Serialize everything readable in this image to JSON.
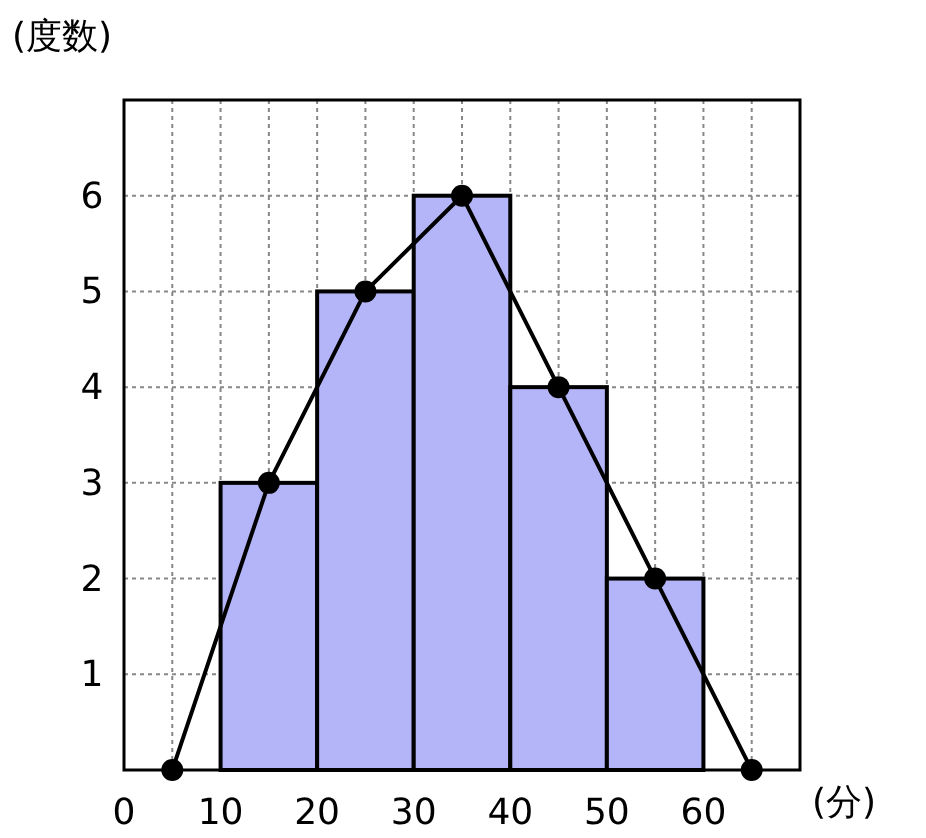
{
  "chart_data": {
    "type": "histogram",
    "bins": [
      10,
      20,
      30,
      40,
      50,
      60
    ],
    "values": [
      3,
      5,
      6,
      4,
      2
    ],
    "color": "#b4b4f8",
    "xlabel": "(分)",
    "ylabel": "(度数)",
    "xlim": [
      0,
      70
    ],
    "ylim": [
      0,
      7
    ],
    "xticks": [
      0,
      {
        "value": 5,
        "label": null
      },
      10,
      {
        "value": 15,
        "label": null
      },
      20,
      {
        "value": 25,
        "label": null
      },
      30,
      {
        "value": 35,
        "label": null
      },
      40,
      {
        "value": 45,
        "label": null
      },
      50,
      {
        "value": 55,
        "label": null
      },
      60,
      {
        "value": 65,
        "label": null
      }
    ],
    "yticks": [
      1,
      2,
      3,
      4,
      5,
      6
    ],
    "grid": true,
    "series": [
      {
        "type": "line",
        "x": [
          5,
          15,
          25,
          35,
          45,
          55,
          65
        ],
        "values": [
          0,
          3,
          5,
          6,
          4,
          2,
          0
        ],
        "color": "#000000",
        "marker": "circle",
        "line_style": "solid"
      }
    ]
  }
}
